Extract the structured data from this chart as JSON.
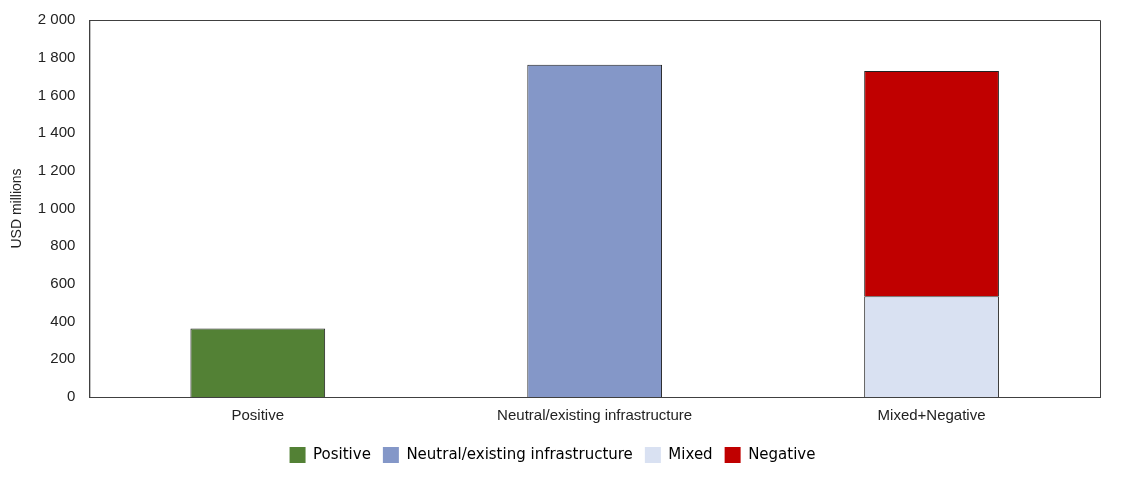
{
  "chart_data": {
    "type": "bar",
    "stacked": true,
    "ylabel": "USD millions",
    "categories": [
      "Positive",
      "Neutral/existing infrastructure",
      "Mixed+Negative"
    ],
    "series": [
      {
        "name": "Positive",
        "color": "#538135",
        "values": [
          363,
          null,
          null
        ]
      },
      {
        "name": "Neutral/existing infrastructure",
        "color": "#8497c8",
        "values": [
          null,
          1762,
          null
        ]
      },
      {
        "name": "Mixed",
        "color": "#d9e1f2",
        "values": [
          null,
          null,
          534
        ]
      },
      {
        "name": "Negative",
        "color": "#c00000",
        "values": [
          null,
          null,
          1196
        ]
      }
    ],
    "ylim": [
      0,
      2000
    ],
    "yticks": [
      0,
      200,
      400,
      600,
      800,
      {
        "value": 1000,
        "label": "1 000"
      },
      {
        "value": 1200,
        "label": "1 200"
      },
      {
        "value": 1400,
        "label": "1 400"
      },
      {
        "value": 1600,
        "label": "1 600"
      },
      {
        "value": 1800,
        "label": "1 800"
      },
      {
        "value": 2000,
        "label": "2 000"
      }
    ],
    "grid": false,
    "legend": "bottom"
  }
}
